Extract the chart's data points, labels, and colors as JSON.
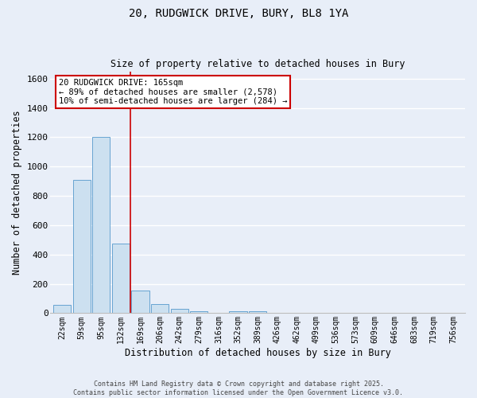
{
  "title_line1": "20, RUDGWICK DRIVE, BURY, BL8 1YA",
  "title_line2": "Size of property relative to detached houses in Bury",
  "xlabel": "Distribution of detached houses by size in Bury",
  "ylabel": "Number of detached properties",
  "bar_labels": [
    "22sqm",
    "59sqm",
    "95sqm",
    "132sqm",
    "169sqm",
    "206sqm",
    "242sqm",
    "279sqm",
    "316sqm",
    "352sqm",
    "389sqm",
    "426sqm",
    "462sqm",
    "499sqm",
    "536sqm",
    "573sqm",
    "609sqm",
    "646sqm",
    "683sqm",
    "719sqm",
    "756sqm"
  ],
  "bar_values": [
    55,
    910,
    1200,
    475,
    155,
    60,
    30,
    15,
    0,
    15,
    15,
    0,
    0,
    0,
    0,
    0,
    0,
    0,
    0,
    0,
    0
  ],
  "bar_color": "#cce0f0",
  "bar_edge_color": "#5599cc",
  "background_color": "#e8eef8",
  "grid_color": "#ffffff",
  "vline_x": 3.5,
  "vline_color": "#cc0000",
  "annotation_text": "20 RUDGWICK DRIVE: 165sqm\n← 89% of detached houses are smaller (2,578)\n10% of semi-detached houses are larger (284) →",
  "annotation_box_color": "#ffffff",
  "annotation_box_edge": "#cc0000",
  "ylim": [
    0,
    1650
  ],
  "yticks": [
    0,
    200,
    400,
    600,
    800,
    1000,
    1200,
    1400,
    1600
  ],
  "footer_line1": "Contains HM Land Registry data © Crown copyright and database right 2025.",
  "footer_line2": "Contains public sector information licensed under the Open Government Licence v3.0."
}
